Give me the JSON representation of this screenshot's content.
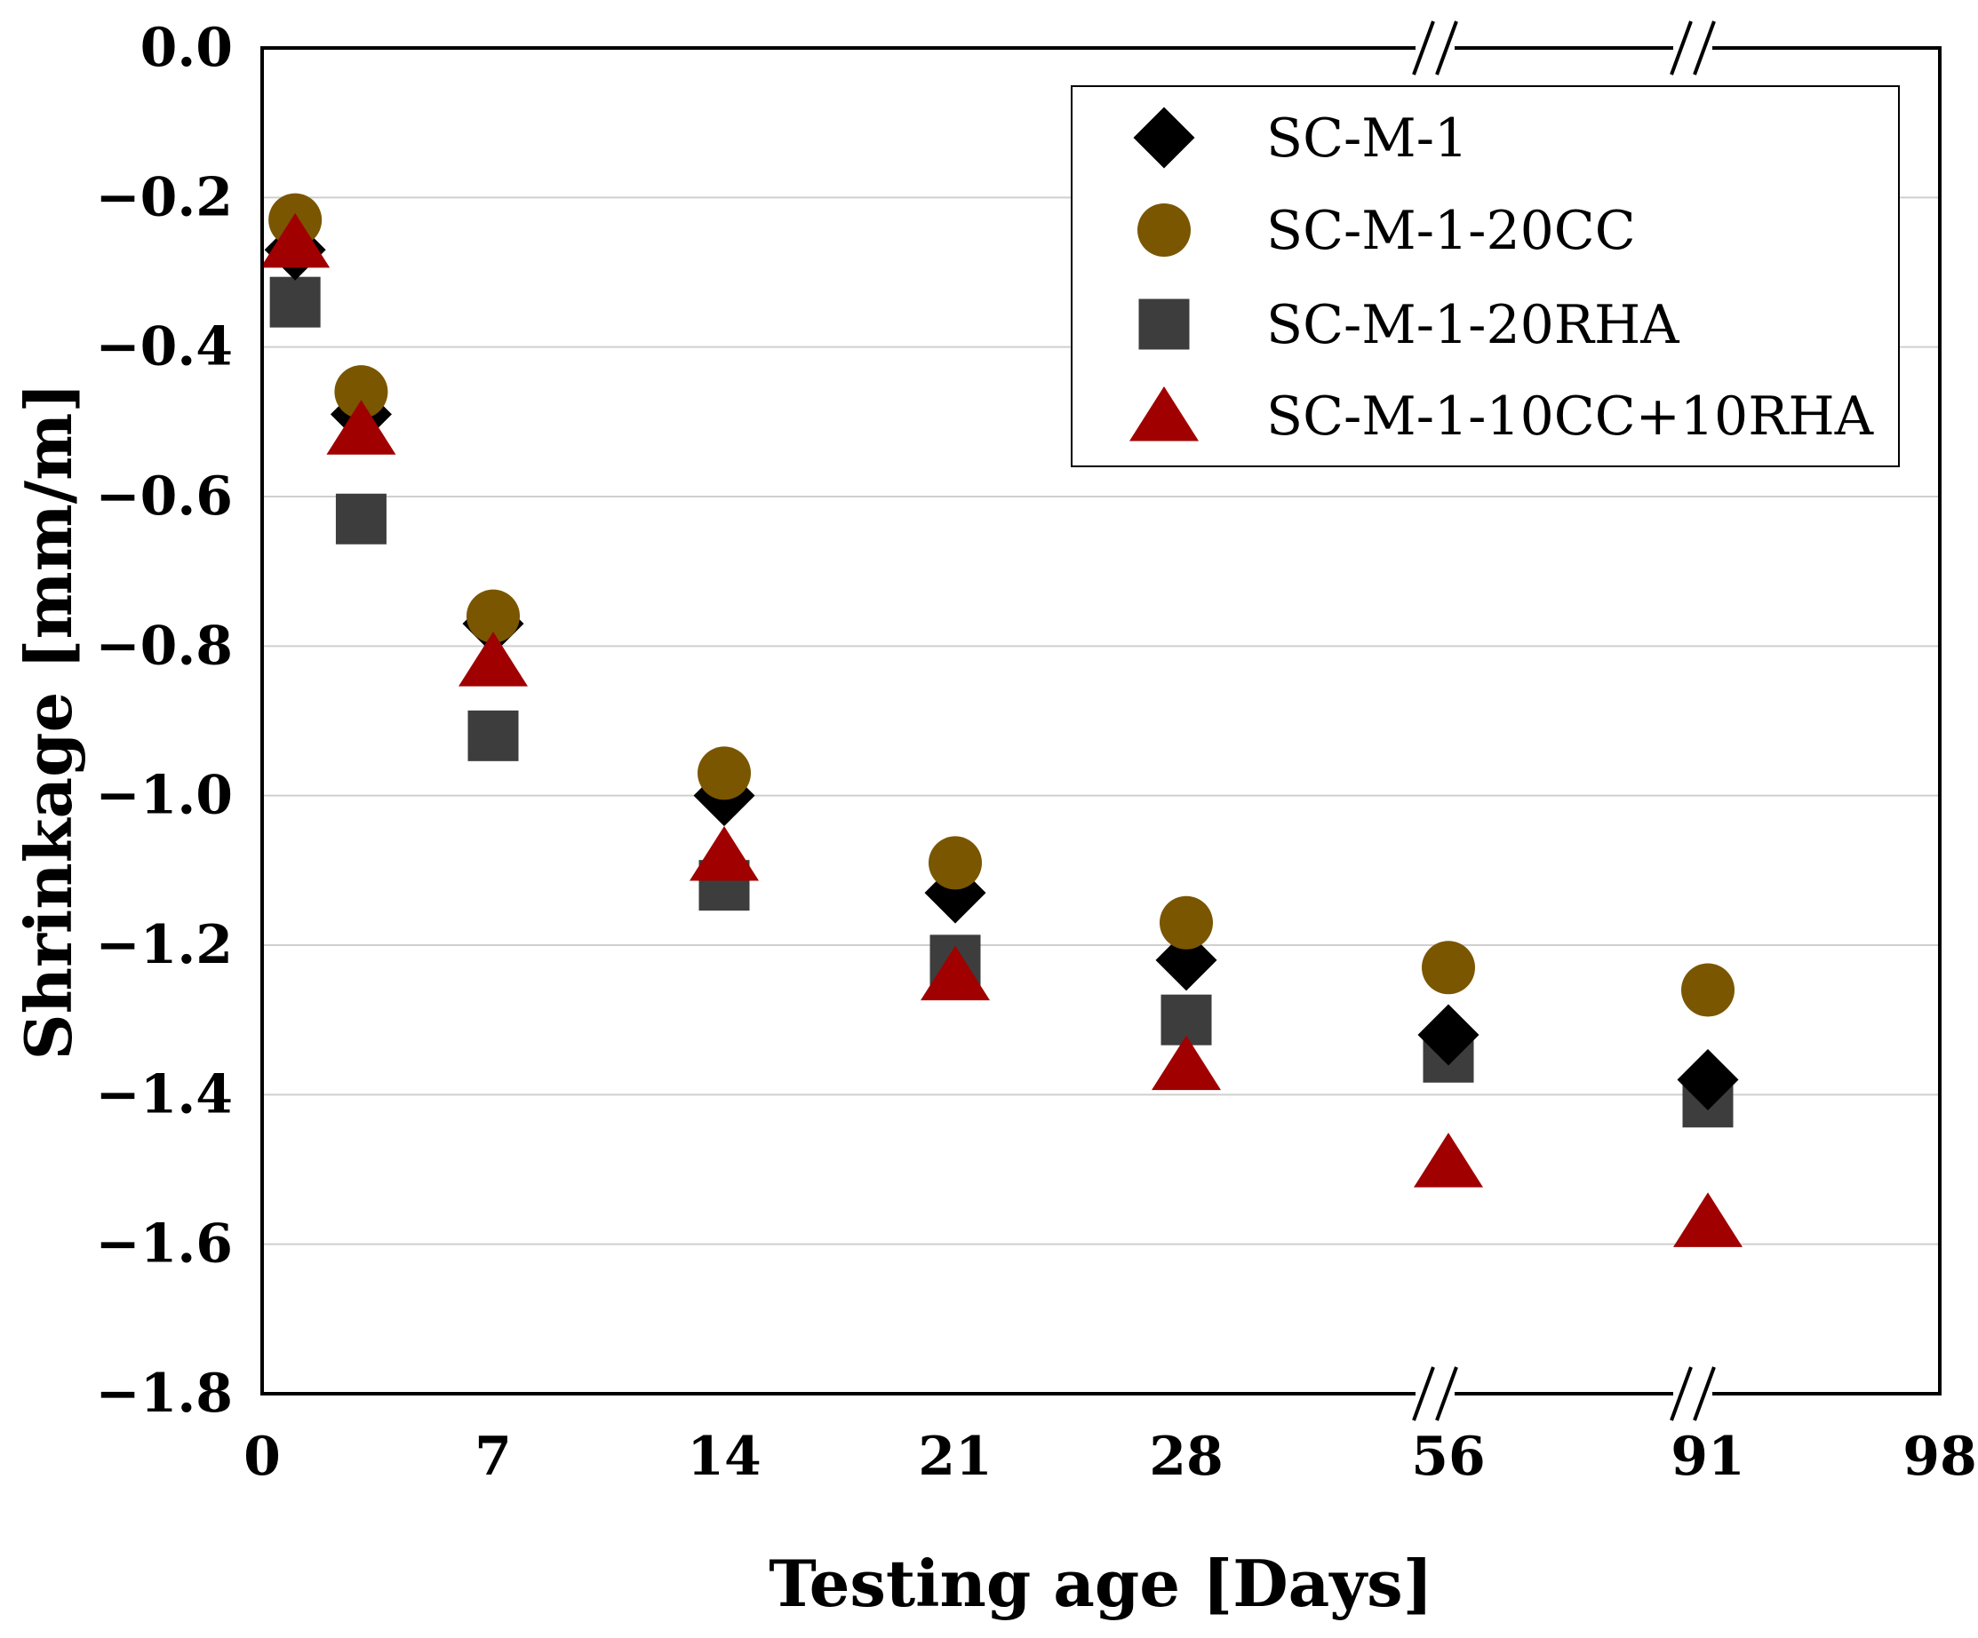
{
  "chart_data": {
    "type": "scatter",
    "title": "",
    "xlabel": "Testing age [Days]",
    "ylabel": "Shrinkage [mm/m]",
    "xlim": [
      0,
      98
    ],
    "ylim": [
      -1.8,
      0.0
    ],
    "grid": "horizontal",
    "legend_position": "top-right",
    "x_ticks": [
      0,
      7,
      14,
      21,
      28,
      56,
      91,
      98
    ],
    "y_ticks": [
      0.0,
      -0.2,
      -0.4,
      -0.6,
      -0.8,
      -1.0,
      -1.2,
      -1.4,
      -1.6,
      -1.8
    ],
    "x_tick_labels": [
      "0",
      "7",
      "14",
      "21",
      "28",
      "56",
      "91",
      "98"
    ],
    "y_tick_labels": [
      "0.0",
      "−0.2",
      "−0.4",
      "−0.6",
      "−0.8",
      "−1.0",
      "−1.2",
      "−1.4",
      "−1.6",
      "−1.8"
    ],
    "axis_breaks": [
      "between 28 and 56",
      "between 56 and 91"
    ],
    "x": [
      1,
      3,
      7,
      14,
      21,
      28,
      56,
      91
    ],
    "series": [
      {
        "name": "SC-M-1",
        "marker": "diamond",
        "color": "#000000",
        "values": [
          -0.27,
          -0.49,
          -0.77,
          -1.0,
          -1.13,
          -1.22,
          -1.32,
          -1.38
        ]
      },
      {
        "name": "SC-M-1-20CC",
        "marker": "circle",
        "color": "#7a5600",
        "values": [
          -0.23,
          -0.46,
          -0.76,
          -0.97,
          -1.09,
          -1.17,
          -1.23,
          -1.26
        ]
      },
      {
        "name": "SC-M-1-20RHA",
        "marker": "square",
        "color": "#3d3d3d",
        "values": [
          -0.34,
          -0.63,
          -0.92,
          -1.12,
          -1.22,
          -1.3,
          -1.35,
          -1.41
        ]
      },
      {
        "name": "SC-M-1-10CC+10RHA",
        "marker": "triangle",
        "color": "#a00000",
        "values": [
          -0.26,
          -0.51,
          -0.82,
          -1.08,
          -1.24,
          -1.36,
          -1.49,
          -1.57
        ]
      }
    ]
  }
}
